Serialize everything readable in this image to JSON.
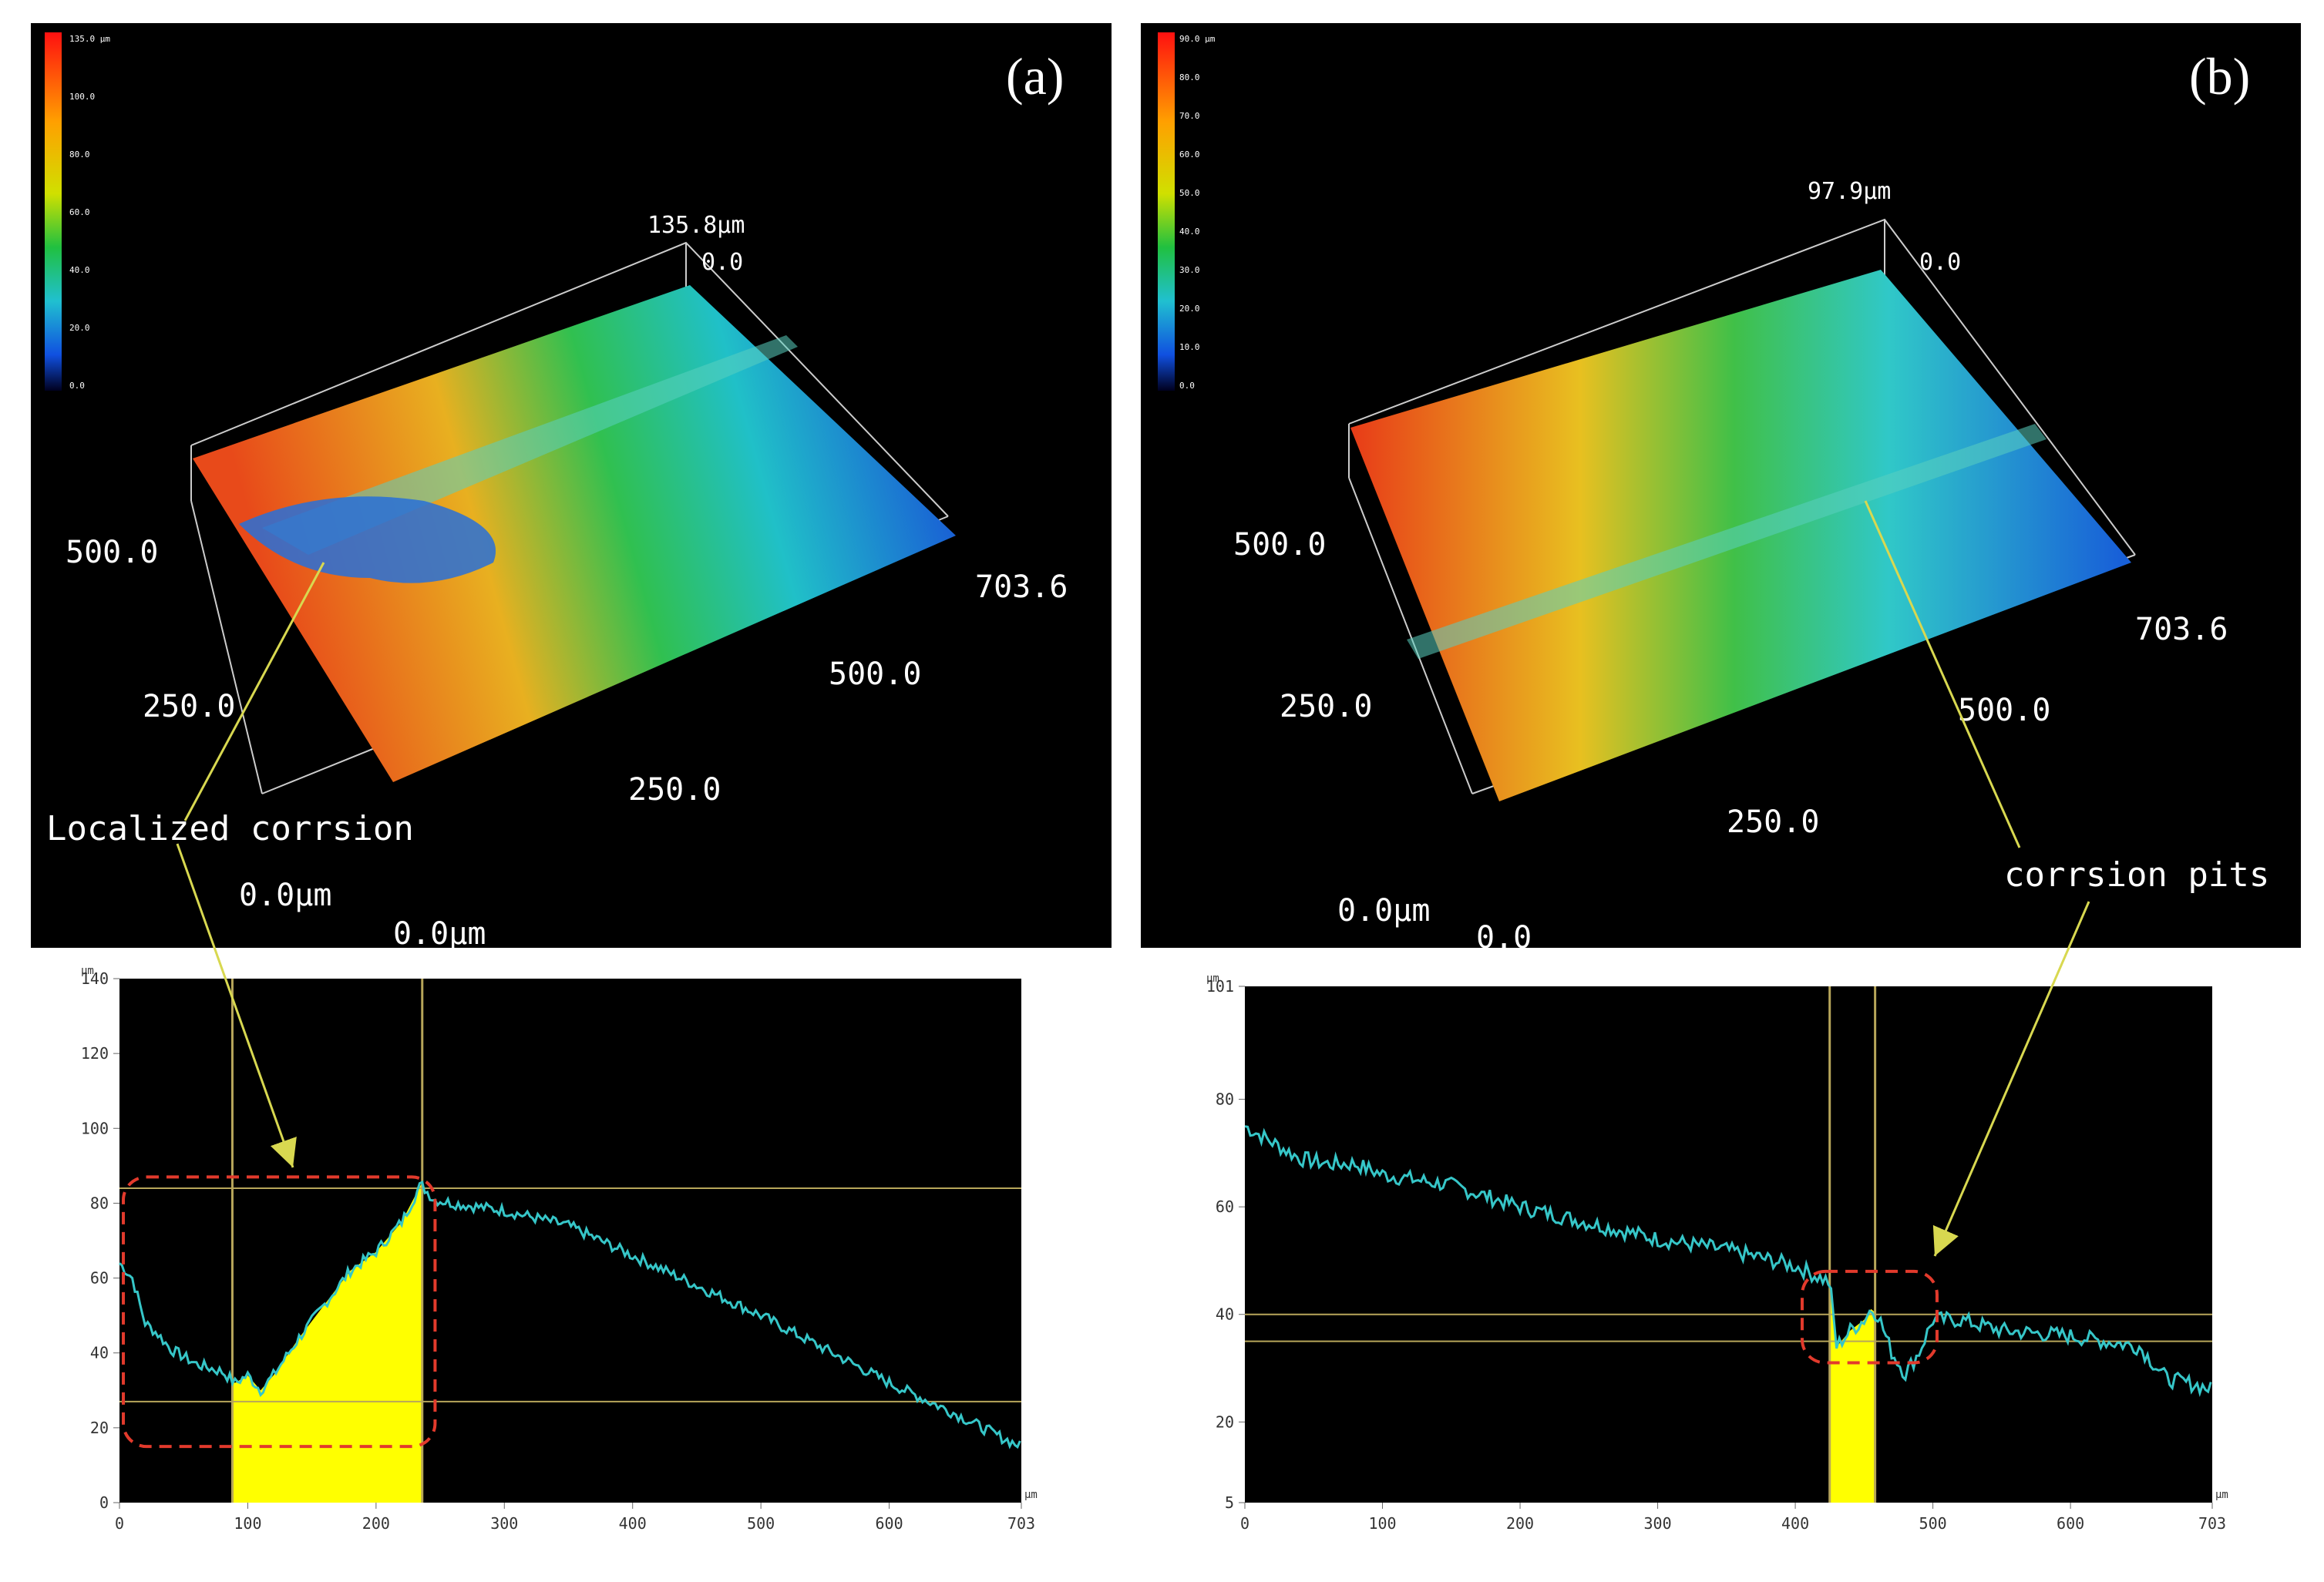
{
  "colors": {
    "background": "#000000",
    "profile_line": "#36c6c8",
    "highlight": "#ffff00",
    "dash_box": "#e23a2c",
    "cursor_line": "#b7a65a",
    "annotation": "#d8d850"
  },
  "panel_a": {
    "letter": "(a)",
    "colorbar_ticks": [
      "135.0 µm",
      "100.0",
      "80.0",
      "60.0",
      "40.0",
      "20.0",
      "0.0"
    ],
    "height_top": "135.8µm",
    "height_zero": "0.0",
    "y_ticks": [
      "500.0",
      "250.0",
      "0.0µm"
    ],
    "x_ticks": [
      "703.6",
      "500.0",
      "250.0",
      "0.0µm"
    ],
    "annotation": "Localized corrsion"
  },
  "panel_b": {
    "letter": "(b)",
    "colorbar_ticks": [
      "90.0 µm",
      "80.0",
      "70.0",
      "60.0",
      "50.0",
      "40.0",
      "30.0",
      "20.0",
      "10.0",
      "0.0"
    ],
    "height_top": "97.9µm",
    "height_zero": "0.0",
    "y_ticks": [
      "500.0",
      "250.0",
      "0.0µm"
    ],
    "x_ticks": [
      "703.6",
      "500.0",
      "250.0",
      "0.0"
    ],
    "annotation": "corrsion pits"
  },
  "chart_data": [
    {
      "type": "line",
      "title": "",
      "xlabel": "µm",
      "ylabel": "µm",
      "xlim": [
        0,
        703
      ],
      "ylim": [
        0,
        140
      ],
      "x_ticks": [
        "0",
        "100",
        "200",
        "300",
        "400",
        "500",
        "600",
        "703"
      ],
      "y_ticks": [
        "0",
        "20",
        "40",
        "60",
        "80",
        "100",
        "120",
        "140"
      ],
      "x": [
        0,
        10,
        20,
        30,
        40,
        60,
        80,
        90,
        100,
        110,
        120,
        140,
        160,
        180,
        200,
        220,
        235,
        245,
        260,
        300,
        350,
        400,
        450,
        500,
        550,
        600,
        650,
        690,
        703
      ],
      "values": [
        64,
        60,
        48,
        45,
        41,
        37,
        35,
        32,
        34,
        30,
        34,
        44,
        53,
        62,
        67,
        75,
        85,
        81,
        80,
        78,
        74,
        66,
        58,
        50,
        41,
        32,
        24,
        17,
        15
      ],
      "highlight_range": [
        88,
        236
      ],
      "cursor_x": [
        88,
        236
      ],
      "cursor_y": [
        84,
        27
      ]
    },
    {
      "type": "line",
      "title": "",
      "xlabel": "µm",
      "ylabel": "µm",
      "xlim": [
        0,
        703
      ],
      "ylim": [
        5,
        101
      ],
      "x_ticks": [
        "0",
        "100",
        "200",
        "300",
        "400",
        "500",
        "600",
        "703"
      ],
      "y_ticks": [
        "5",
        "20",
        "40",
        "60",
        "80",
        "101"
      ],
      "x": [
        0,
        20,
        40,
        60,
        80,
        100,
        150,
        200,
        250,
        300,
        350,
        400,
        425,
        430,
        440,
        450,
        455,
        460,
        470,
        480,
        490,
        500,
        520,
        550,
        600,
        650,
        670,
        690,
        703
      ],
      "values": [
        75,
        72,
        69,
        68,
        68,
        66,
        64,
        60,
        57,
        54,
        52,
        49,
        46,
        34,
        37,
        39,
        41,
        40,
        33,
        29,
        33,
        39,
        39,
        37,
        36,
        34,
        28,
        27,
        26
      ],
      "highlight_range": [
        425,
        458
      ],
      "cursor_x": [
        425,
        458
      ],
      "cursor_y": [
        40,
        35
      ]
    }
  ]
}
